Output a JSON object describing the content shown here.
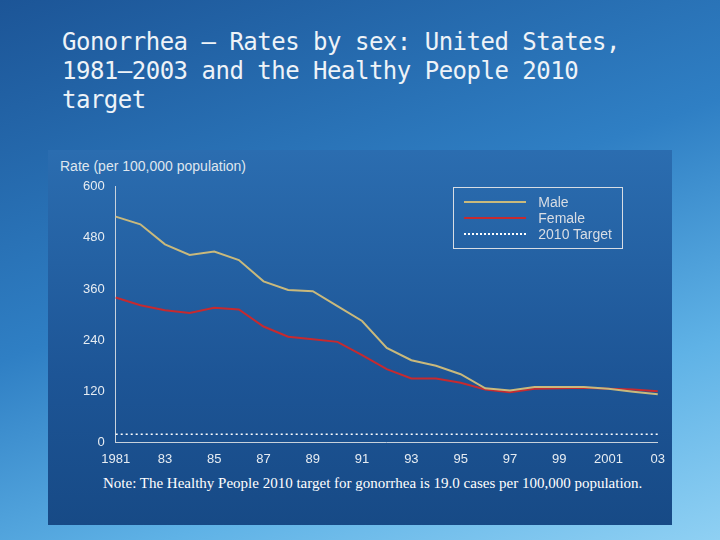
{
  "chart_data": {
    "type": "line",
    "title": "Gonorrhea — Rates by sex: United States, 1981–2003 and the Healthy People 2010 target",
    "y_label": "Rate (per 100,000 population)",
    "note": "Note: The Healthy People 2010 target for gonorrhea is 19.0 cases per 100,000 population.",
    "categories": [
      "1981",
      null,
      "83",
      null,
      "85",
      null,
      "87",
      null,
      "89",
      null,
      "91",
      null,
      "93",
      null,
      "95",
      null,
      "97",
      null,
      "99",
      null,
      "2001",
      null,
      "03"
    ],
    "series": [
      {
        "name": "Male",
        "color": "#c9b97c",
        "values": [
          530,
          512,
          465,
          440,
          448,
          428,
          378,
          358,
          355,
          320,
          285,
          222,
          193,
          180,
          160,
          127,
          122,
          130,
          130,
          130,
          126,
          119,
          113
        ]
      },
      {
        "name": "Female",
        "color": "#c62a2f",
        "values": [
          340,
          322,
          310,
          304,
          316,
          312,
          272,
          248,
          242,
          236,
          205,
          172,
          150,
          150,
          140,
          124,
          118,
          126,
          127,
          128,
          126,
          124,
          120
        ]
      },
      {
        "name": "2010 Target",
        "color": "#ffffff",
        "line_style": "dotted",
        "values": [
          19,
          19,
          19,
          19,
          19,
          19,
          19,
          19,
          19,
          19,
          19,
          19,
          19,
          19,
          19,
          19,
          19,
          19,
          19,
          19,
          19,
          19,
          19
        ]
      }
    ],
    "ylim": [
      0,
      600
    ],
    "yticks": [
      0,
      120,
      240,
      360,
      480,
      600
    ],
    "grid": false,
    "legend": "top-right"
  }
}
